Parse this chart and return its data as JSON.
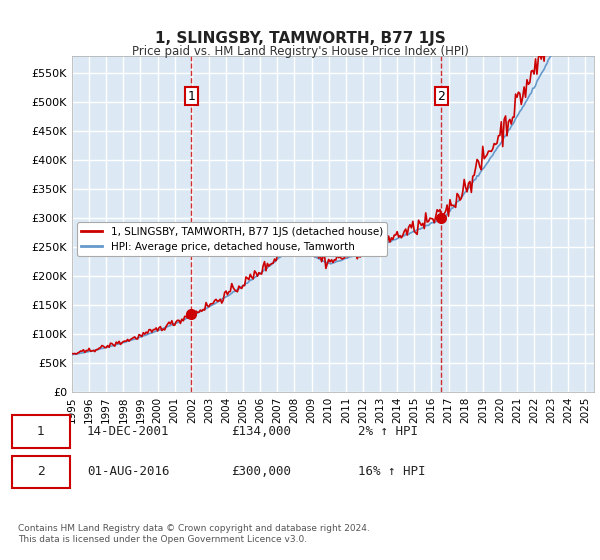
{
  "title": "1, SLINGSBY, TAMWORTH, B77 1JS",
  "subtitle": "Price paid vs. HM Land Registry's House Price Index (HPI)",
  "ylabel_ticks": [
    "£0",
    "£50K",
    "£100K",
    "£150K",
    "£200K",
    "£250K",
    "£300K",
    "£350K",
    "£400K",
    "£450K",
    "£500K",
    "£550K"
  ],
  "ytick_values": [
    0,
    50000,
    100000,
    150000,
    200000,
    250000,
    300000,
    350000,
    400000,
    450000,
    500000,
    550000
  ],
  "ylim": [
    0,
    580000
  ],
  "xlim_start": 1995.0,
  "xlim_end": 2025.5,
  "background_color": "#dce9f5",
  "plot_bg_color": "#dce9f5",
  "figure_bg_color": "#ffffff",
  "grid_color": "#ffffff",
  "red_line_color": "#cc0000",
  "blue_line_color": "#6699cc",
  "marker1_date": 2001.96,
  "marker1_price": 134000,
  "marker2_date": 2016.58,
  "marker2_price": 300000,
  "legend_line1": "1, SLINGSBY, TAMWORTH, B77 1JS (detached house)",
  "legend_line2": "HPI: Average price, detached house, Tamworth",
  "table_row1": [
    "1",
    "14-DEC-2001",
    "£134,000",
    "2% ↑ HPI"
  ],
  "table_row2": [
    "2",
    "01-AUG-2016",
    "£300,000",
    "16% ↑ HPI"
  ],
  "footnote1": "Contains HM Land Registry data © Crown copyright and database right 2024.",
  "footnote2": "This data is licensed under the Open Government Licence v3.0.",
  "xtick_years": [
    1995,
    1996,
    1997,
    1998,
    1999,
    2000,
    2001,
    2002,
    2003,
    2004,
    2005,
    2006,
    2007,
    2008,
    2009,
    2010,
    2011,
    2012,
    2013,
    2014,
    2015,
    2016,
    2017,
    2018,
    2019,
    2020,
    2021,
    2022,
    2023,
    2024,
    2025
  ]
}
